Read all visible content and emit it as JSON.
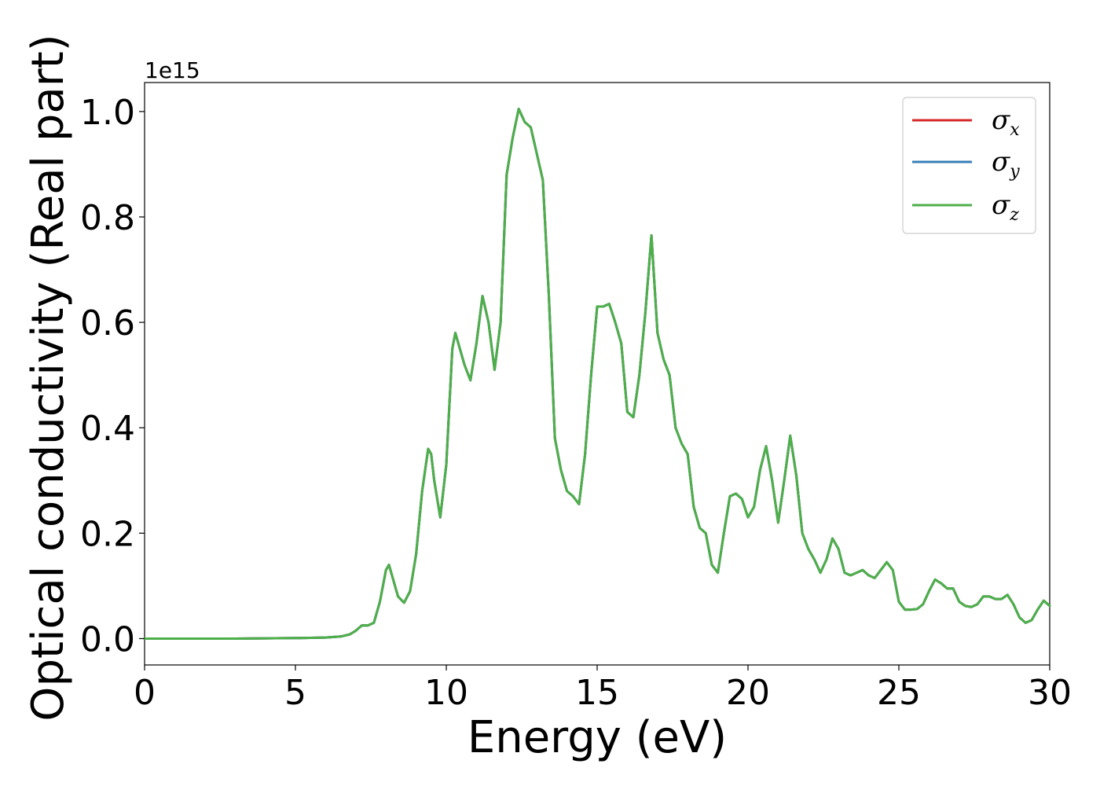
{
  "chart_data": {
    "type": "line",
    "title": "",
    "xlabel": "Energy (eV)",
    "ylabel": "Optical conductivity (Real part)",
    "y_offset_label": "1e15",
    "xlim": [
      0,
      30
    ],
    "ylim": [
      -0.05,
      1.055
    ],
    "xticks": [
      0,
      5,
      10,
      15,
      20,
      25,
      30
    ],
    "xtick_labels": [
      "0",
      "5",
      "10",
      "15",
      "20",
      "25",
      "30"
    ],
    "yticks": [
      0.0,
      0.2,
      0.4,
      0.6,
      0.8,
      1.0
    ],
    "ytick_labels": [
      "0.0",
      "0.2",
      "0.4",
      "0.6",
      "0.8",
      "1.0"
    ],
    "grid": false,
    "legend_position": "top-right",
    "x": [
      0,
      1,
      2,
      3,
      4,
      5,
      5.5,
      6,
      6.5,
      6.8,
      7.0,
      7.2,
      7.4,
      7.6,
      7.8,
      8.0,
      8.1,
      8.2,
      8.4,
      8.6,
      8.8,
      9.0,
      9.2,
      9.4,
      9.5,
      9.6,
      9.8,
      10.0,
      10.2,
      10.3,
      10.4,
      10.6,
      10.8,
      11.0,
      11.2,
      11.4,
      11.6,
      11.8,
      12.0,
      12.2,
      12.4,
      12.6,
      12.8,
      13.0,
      13.2,
      13.4,
      13.6,
      13.8,
      14.0,
      14.2,
      14.4,
      14.6,
      14.8,
      15.0,
      15.2,
      15.4,
      15.6,
      15.8,
      16.0,
      16.2,
      16.4,
      16.6,
      16.8,
      17.0,
      17.2,
      17.4,
      17.6,
      17.8,
      18.0,
      18.2,
      18.4,
      18.6,
      18.8,
      19.0,
      19.2,
      19.4,
      19.6,
      19.8,
      20.0,
      20.2,
      20.4,
      20.6,
      20.8,
      21.0,
      21.2,
      21.4,
      21.6,
      21.8,
      22.0,
      22.2,
      22.4,
      22.6,
      22.8,
      23.0,
      23.2,
      23.4,
      23.6,
      23.8,
      24.0,
      24.2,
      24.4,
      24.6,
      24.8,
      25.0,
      25.2,
      25.4,
      25.6,
      25.8,
      26.0,
      26.2,
      26.4,
      26.6,
      26.8,
      27.0,
      27.2,
      27.4,
      27.6,
      27.8,
      28.0,
      28.2,
      28.4,
      28.6,
      28.8,
      29.0,
      29.2,
      29.4,
      29.6,
      29.8,
      30.0
    ],
    "series": [
      {
        "name": "σ_x",
        "label_symbol": "σ",
        "label_subscript": "x",
        "color": "#d62728",
        "values": [
          0.0,
          0.0,
          0.0,
          0.0,
          0.0005,
          0.001,
          0.0015,
          0.002,
          0.004,
          0.008,
          0.015,
          0.025,
          0.025,
          0.03,
          0.07,
          0.13,
          0.14,
          0.12,
          0.08,
          0.068,
          0.09,
          0.16,
          0.28,
          0.36,
          0.35,
          0.3,
          0.23,
          0.33,
          0.55,
          0.58,
          0.56,
          0.52,
          0.49,
          0.56,
          0.65,
          0.6,
          0.51,
          0.6,
          0.88,
          0.95,
          1.005,
          0.98,
          0.97,
          0.92,
          0.87,
          0.65,
          0.38,
          0.32,
          0.28,
          0.27,
          0.255,
          0.35,
          0.5,
          0.63,
          0.63,
          0.635,
          0.6,
          0.56,
          0.43,
          0.42,
          0.5,
          0.62,
          0.765,
          0.58,
          0.53,
          0.5,
          0.4,
          0.37,
          0.35,
          0.25,
          0.21,
          0.2,
          0.14,
          0.125,
          0.2,
          0.27,
          0.275,
          0.265,
          0.23,
          0.25,
          0.32,
          0.365,
          0.3,
          0.22,
          0.3,
          0.385,
          0.31,
          0.2,
          0.17,
          0.15,
          0.125,
          0.15,
          0.19,
          0.17,
          0.125,
          0.12,
          0.125,
          0.13,
          0.12,
          0.115,
          0.13,
          0.145,
          0.13,
          0.07,
          0.055,
          0.055,
          0.056,
          0.065,
          0.09,
          0.112,
          0.105,
          0.095,
          0.095,
          0.07,
          0.062,
          0.06,
          0.065,
          0.08,
          0.08,
          0.075,
          0.075,
          0.083,
          0.065,
          0.04,
          0.03,
          0.035,
          0.055,
          0.072,
          0.062
        ]
      },
      {
        "name": "σ_y",
        "label_symbol": "σ",
        "label_subscript": "y",
        "color": "#377eb8",
        "values": [
          0.0,
          0.0,
          0.0,
          0.0,
          0.0005,
          0.001,
          0.0015,
          0.002,
          0.004,
          0.008,
          0.015,
          0.025,
          0.025,
          0.03,
          0.07,
          0.13,
          0.14,
          0.12,
          0.08,
          0.068,
          0.09,
          0.16,
          0.28,
          0.36,
          0.35,
          0.3,
          0.23,
          0.33,
          0.55,
          0.58,
          0.56,
          0.52,
          0.49,
          0.56,
          0.65,
          0.6,
          0.51,
          0.6,
          0.88,
          0.95,
          1.005,
          0.98,
          0.97,
          0.92,
          0.87,
          0.65,
          0.38,
          0.32,
          0.28,
          0.27,
          0.255,
          0.35,
          0.5,
          0.63,
          0.63,
          0.635,
          0.6,
          0.56,
          0.43,
          0.42,
          0.5,
          0.62,
          0.765,
          0.58,
          0.53,
          0.5,
          0.4,
          0.37,
          0.35,
          0.25,
          0.21,
          0.2,
          0.14,
          0.125,
          0.2,
          0.27,
          0.275,
          0.265,
          0.23,
          0.25,
          0.32,
          0.365,
          0.3,
          0.22,
          0.3,
          0.385,
          0.31,
          0.2,
          0.17,
          0.15,
          0.125,
          0.15,
          0.19,
          0.17,
          0.125,
          0.12,
          0.125,
          0.13,
          0.12,
          0.115,
          0.13,
          0.145,
          0.13,
          0.07,
          0.055,
          0.055,
          0.056,
          0.065,
          0.09,
          0.112,
          0.105,
          0.095,
          0.095,
          0.07,
          0.062,
          0.06,
          0.065,
          0.08,
          0.08,
          0.075,
          0.075,
          0.083,
          0.065,
          0.04,
          0.03,
          0.035,
          0.055,
          0.072,
          0.062
        ]
      },
      {
        "name": "σ_z",
        "label_symbol": "σ",
        "label_subscript": "z",
        "color": "#4daf4a",
        "values": [
          0.0,
          0.0,
          0.0,
          0.0,
          0.0005,
          0.001,
          0.0015,
          0.002,
          0.004,
          0.008,
          0.015,
          0.025,
          0.025,
          0.03,
          0.07,
          0.13,
          0.14,
          0.12,
          0.08,
          0.068,
          0.09,
          0.16,
          0.28,
          0.36,
          0.35,
          0.3,
          0.23,
          0.33,
          0.55,
          0.58,
          0.56,
          0.52,
          0.49,
          0.56,
          0.65,
          0.6,
          0.51,
          0.6,
          0.88,
          0.95,
          1.005,
          0.98,
          0.97,
          0.92,
          0.87,
          0.65,
          0.38,
          0.32,
          0.28,
          0.27,
          0.255,
          0.35,
          0.5,
          0.63,
          0.63,
          0.635,
          0.6,
          0.56,
          0.43,
          0.42,
          0.5,
          0.62,
          0.765,
          0.58,
          0.53,
          0.5,
          0.4,
          0.37,
          0.35,
          0.25,
          0.21,
          0.2,
          0.14,
          0.125,
          0.2,
          0.27,
          0.275,
          0.265,
          0.23,
          0.25,
          0.32,
          0.365,
          0.3,
          0.22,
          0.3,
          0.385,
          0.31,
          0.2,
          0.17,
          0.15,
          0.125,
          0.15,
          0.19,
          0.17,
          0.125,
          0.12,
          0.125,
          0.13,
          0.12,
          0.115,
          0.13,
          0.145,
          0.13,
          0.07,
          0.055,
          0.055,
          0.056,
          0.065,
          0.09,
          0.112,
          0.105,
          0.095,
          0.095,
          0.07,
          0.062,
          0.06,
          0.065,
          0.08,
          0.08,
          0.075,
          0.075,
          0.083,
          0.065,
          0.04,
          0.03,
          0.035,
          0.055,
          0.072,
          0.062
        ]
      }
    ]
  }
}
